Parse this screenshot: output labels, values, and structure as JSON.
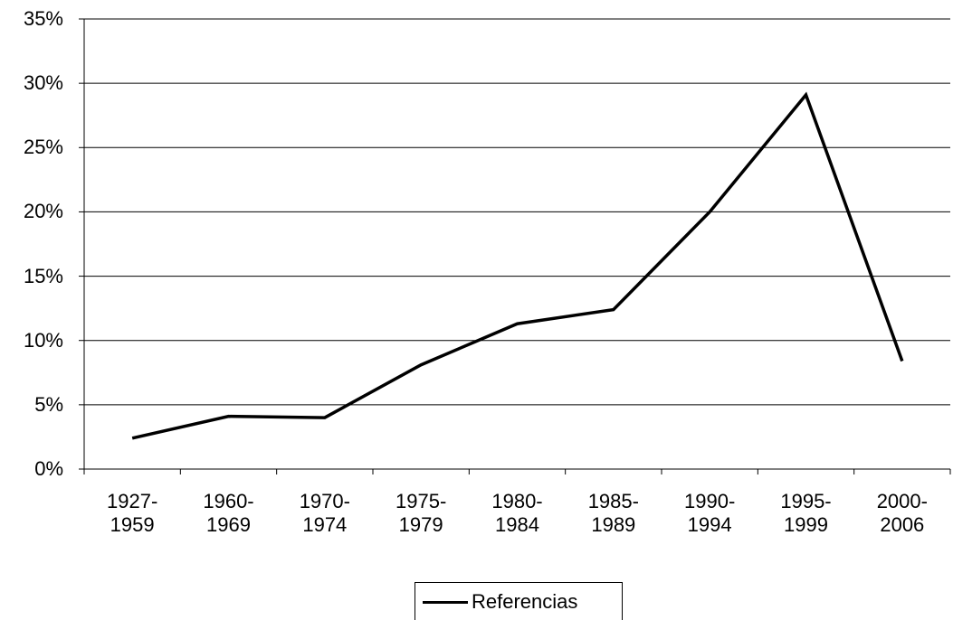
{
  "chart_data": {
    "type": "line",
    "categories": [
      "1927-1959",
      "1960-1969",
      "1970-1974",
      "1975-1979",
      "1980-1984",
      "1985-1989",
      "1990-1994",
      "1995-1999",
      "2000-2006"
    ],
    "series": [
      {
        "name": "Referencias",
        "color": "#000000",
        "values": [
          2.4,
          4.1,
          4.0,
          8.1,
          11.3,
          12.4,
          20.0,
          29.1,
          8.4
        ]
      }
    ],
    "ylim": [
      0,
      35
    ],
    "yticks": [
      {
        "value": 0,
        "label": "0%"
      },
      {
        "value": 5,
        "label": "5%"
      },
      {
        "value": 10,
        "label": "10%"
      },
      {
        "value": 15,
        "label": "15%"
      },
      {
        "value": 20,
        "label": "20%"
      },
      {
        "value": 25,
        "label": "25%"
      },
      {
        "value": 30,
        "label": "30%"
      },
      {
        "value": 35,
        "label": "35%"
      }
    ],
    "grid": true,
    "legend": "bottom"
  }
}
